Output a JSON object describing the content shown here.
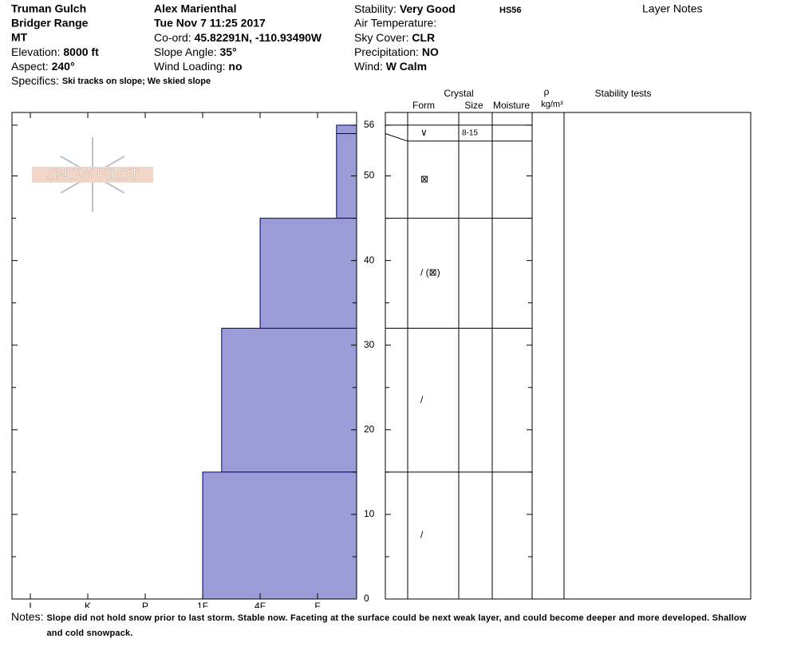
{
  "header": {
    "site": "Truman Gulch",
    "range": "Bridger Range",
    "state": "MT",
    "elevation": {
      "label": "Elevation:",
      "value": "8000 ft"
    },
    "aspect": {
      "label": "Aspect:",
      "value": "240°"
    },
    "specifics": {
      "label": "Specifics:",
      "value": "Ski tracks on slope; We skied slope"
    },
    "observer": "Alex Marienthal",
    "date": "Tue Nov 7 11:25 2017",
    "coord": {
      "label": "Co-ord:",
      "value": "45.82291N, -110.93490W"
    },
    "slope_angle": {
      "label": "Slope Angle:",
      "value": "35°"
    },
    "wind_loading": {
      "label": "Wind Loading:",
      "value": "no"
    },
    "stability": {
      "label": "Stability:",
      "value": "Very Good"
    },
    "hs": "HS56",
    "air_temperature": {
      "label": "Air Temperature:"
    },
    "sky_cover": {
      "label": "Sky Cover:",
      "value": "CLR"
    },
    "precipitation": {
      "label": "Precipitation:",
      "value": "NO"
    },
    "wind": {
      "label": "Wind:",
      "value": "W Calm"
    },
    "layer_notes": "Layer Notes"
  },
  "notes": {
    "label": "Notes:",
    "text": "Slope did not hold snow prior to last storm. Stable now. Faceting at the surface could be next weak layer, and could become deeper and more developed. Shallow and cold snowpack."
  },
  "chart_data": {
    "type": "snow-profile",
    "logo": "SNOW PILOT",
    "xlim": [
      6.32,
      0.32
    ],
    "xticks": [
      {
        "value": 6,
        "label": "I"
      },
      {
        "value": 5,
        "label": "K"
      },
      {
        "value": 4,
        "label": "P"
      },
      {
        "value": 3,
        "label": "1F"
      },
      {
        "value": 2,
        "label": "4F"
      },
      {
        "value": 1,
        "label": "F"
      }
    ],
    "ylim": [
      0,
      57.5
    ],
    "yticks": [
      0,
      10,
      20,
      30,
      40,
      50,
      56
    ],
    "yminorticks": [
      5,
      15,
      25,
      35,
      45
    ],
    "color": "#9b9bd7",
    "layers": {
      "top": [
        56,
        55,
        45,
        32,
        15
      ],
      "bottom": [
        55,
        45,
        32,
        15,
        0
      ],
      "hardness": [
        0.67,
        0.67,
        2,
        2.67,
        3
      ],
      "form": [
        "∨",
        "⊠",
        "/ (⊠)",
        "/",
        "/"
      ],
      "size": [
        "8-15",
        null,
        null,
        null,
        null
      ]
    },
    "columns": {
      "crystal": "Crystal",
      "form": "Form",
      "size": "Size",
      "moisture": "Moisture",
      "density": "ρ",
      "density_unit": "kg/m³",
      "stability_tests": "Stability tests"
    }
  }
}
